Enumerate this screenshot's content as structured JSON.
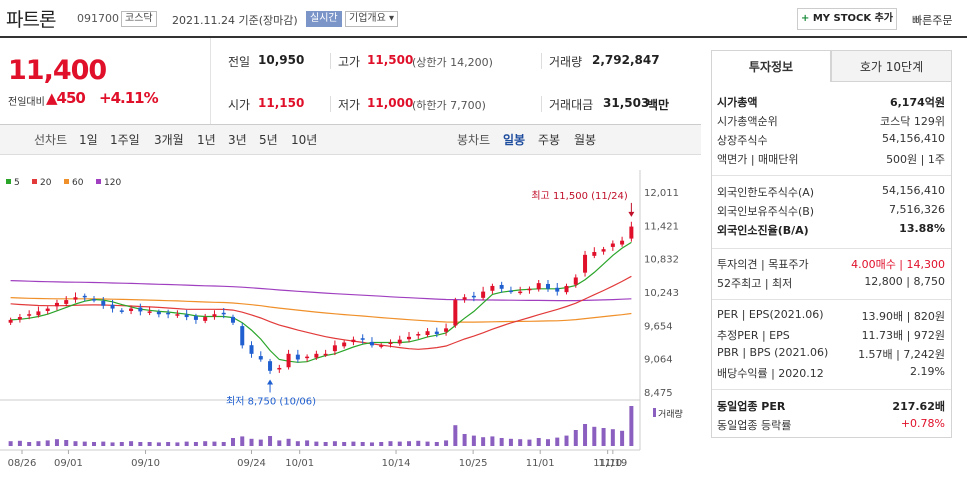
{
  "header": {
    "title": "파트론",
    "code": "091700",
    "market_tag": "코스닥",
    "date": "2021.11.24 기준(장마감)",
    "live_tag": "실시간",
    "company_info": "기업개요",
    "mystock_label": "MY STOCK 추가",
    "quick_order": "빠른주문"
  },
  "price": {
    "current": "11,400",
    "change_label": "전일대비",
    "change": "450",
    "change_pct": "+4.11%"
  },
  "quote": {
    "prev_close_label": "전일",
    "prev_close": "10,950",
    "high_label": "고가",
    "high": "11,500",
    "upper_limit": "(상한가 14,200)",
    "volume_label": "거래량",
    "volume": "2,792,847",
    "open_label": "시가",
    "open": "11,150",
    "low_label": "저가",
    "low": "11,000",
    "lower_limit": "(하한가 7,700)",
    "amount_label": "거래대금",
    "amount": "31,503",
    "amount_unit": "백만"
  },
  "periods": {
    "line_chart": "선차트",
    "items": [
      "1일",
      "1주일",
      "3개월",
      "1년",
      "3년",
      "5년",
      "10년"
    ],
    "candle_chart": "봉차트",
    "candles": [
      "일봉",
      "주봉",
      "월봉"
    ],
    "active_candle": "일봉"
  },
  "colors": {
    "up": "#e0102a",
    "down": "#1f5fd0",
    "ma5": "#2aa52a",
    "ma20": "#e23a3a",
    "ma60": "#f0902a",
    "ma120": "#a040c0"
  },
  "chart_data": {
    "type": "candlestick",
    "legend": [
      "5",
      "20",
      "60",
      "120"
    ],
    "y_ticks": [
      "12,011",
      "11,421",
      "10,832",
      "10,243",
      "9,654",
      "9,064",
      "8,475"
    ],
    "ylim": [
      8475,
      12011
    ],
    "x_ticks": [
      "08/26",
      "09/01",
      "09/10",
      "09/24",
      "10/01",
      "10/14",
      "10/25",
      "11/01",
      "11/10",
      "11/19"
    ],
    "high_annotation": "최고 11,500 (11/24)",
    "low_annotation": "최저 8,750 (10/06)",
    "volume_label": "거래량",
    "closes": [
      9750,
      9800,
      9850,
      9900,
      9950,
      10050,
      10100,
      10150,
      10150,
      10100,
      10000,
      9950,
      9900,
      9950,
      9900,
      9900,
      9850,
      9850,
      9850,
      9800,
      9750,
      9800,
      9850,
      9850,
      9700,
      9300,
      9150,
      9050,
      8850,
      8900,
      9150,
      9050,
      9100,
      9150,
      9150,
      9300,
      9350,
      9400,
      9400,
      9300,
      9300,
      9350,
      9400,
      9450,
      9500,
      9550,
      9500,
      9600,
      10100,
      10150,
      10150,
      10250,
      10350,
      10300,
      10250,
      10250,
      10300,
      10400,
      10300,
      10250,
      10350,
      10500,
      10900,
      10950,
      11000,
      11100,
      11150,
      11400
    ],
    "volumes": [
      0.12,
      0.13,
      0.1,
      0.12,
      0.14,
      0.17,
      0.15,
      0.12,
      0.11,
      0.1,
      0.11,
      0.09,
      0.1,
      0.12,
      0.1,
      0.1,
      0.09,
      0.1,
      0.09,
      0.11,
      0.1,
      0.12,
      0.11,
      0.1,
      0.2,
      0.24,
      0.18,
      0.16,
      0.25,
      0.14,
      0.18,
      0.12,
      0.14,
      0.11,
      0.1,
      0.12,
      0.1,
      0.11,
      0.1,
      0.09,
      0.1,
      0.12,
      0.11,
      0.12,
      0.13,
      0.11,
      0.1,
      0.14,
      0.52,
      0.3,
      0.26,
      0.22,
      0.24,
      0.2,
      0.18,
      0.17,
      0.16,
      0.2,
      0.17,
      0.21,
      0.26,
      0.4,
      0.55,
      0.48,
      0.45,
      0.42,
      0.38,
      1.0
    ]
  },
  "panel": {
    "tabs": [
      "투자정보",
      "호가 10단계"
    ],
    "rows": [
      {
        "l": "시가총액",
        "v": "6,174억원",
        "bold": true
      },
      {
        "l": "시가총액순위",
        "v": "코스닥 129위"
      },
      {
        "l": "상장주식수",
        "v": "54,156,410"
      },
      {
        "l": "액면가 | 매매단위",
        "v": "500원 | 1주"
      },
      {
        "l": "외국인한도주식수(A)",
        "v": "54,156,410"
      },
      {
        "l": "외국인보유주식수(B)",
        "v": "7,516,326"
      },
      {
        "l": "외국인소진율(B/A)",
        "v": "13.88%",
        "bold": true
      },
      {
        "l": "투자의견 | 목표주가",
        "v": "4.00매수 | 14,300"
      },
      {
        "l": "52주최고 | 최저",
        "v": "12,800 | 8,750"
      },
      {
        "l": "PER | EPS(2021.06)",
        "v": "13.90배 | 820원"
      },
      {
        "l": "추정PER | EPS",
        "v": "11.73배 | 972원"
      },
      {
        "l": "PBR | BPS (2021.06)",
        "v": "1.57배 | 7,242원"
      },
      {
        "l": "배당수익률 | 2020.12",
        "v": "2.19%"
      },
      {
        "l": "동일업종 PER",
        "v": "217.62배",
        "bold": true
      },
      {
        "l": "동일업종 등락률",
        "v": "+0.78%"
      }
    ]
  }
}
